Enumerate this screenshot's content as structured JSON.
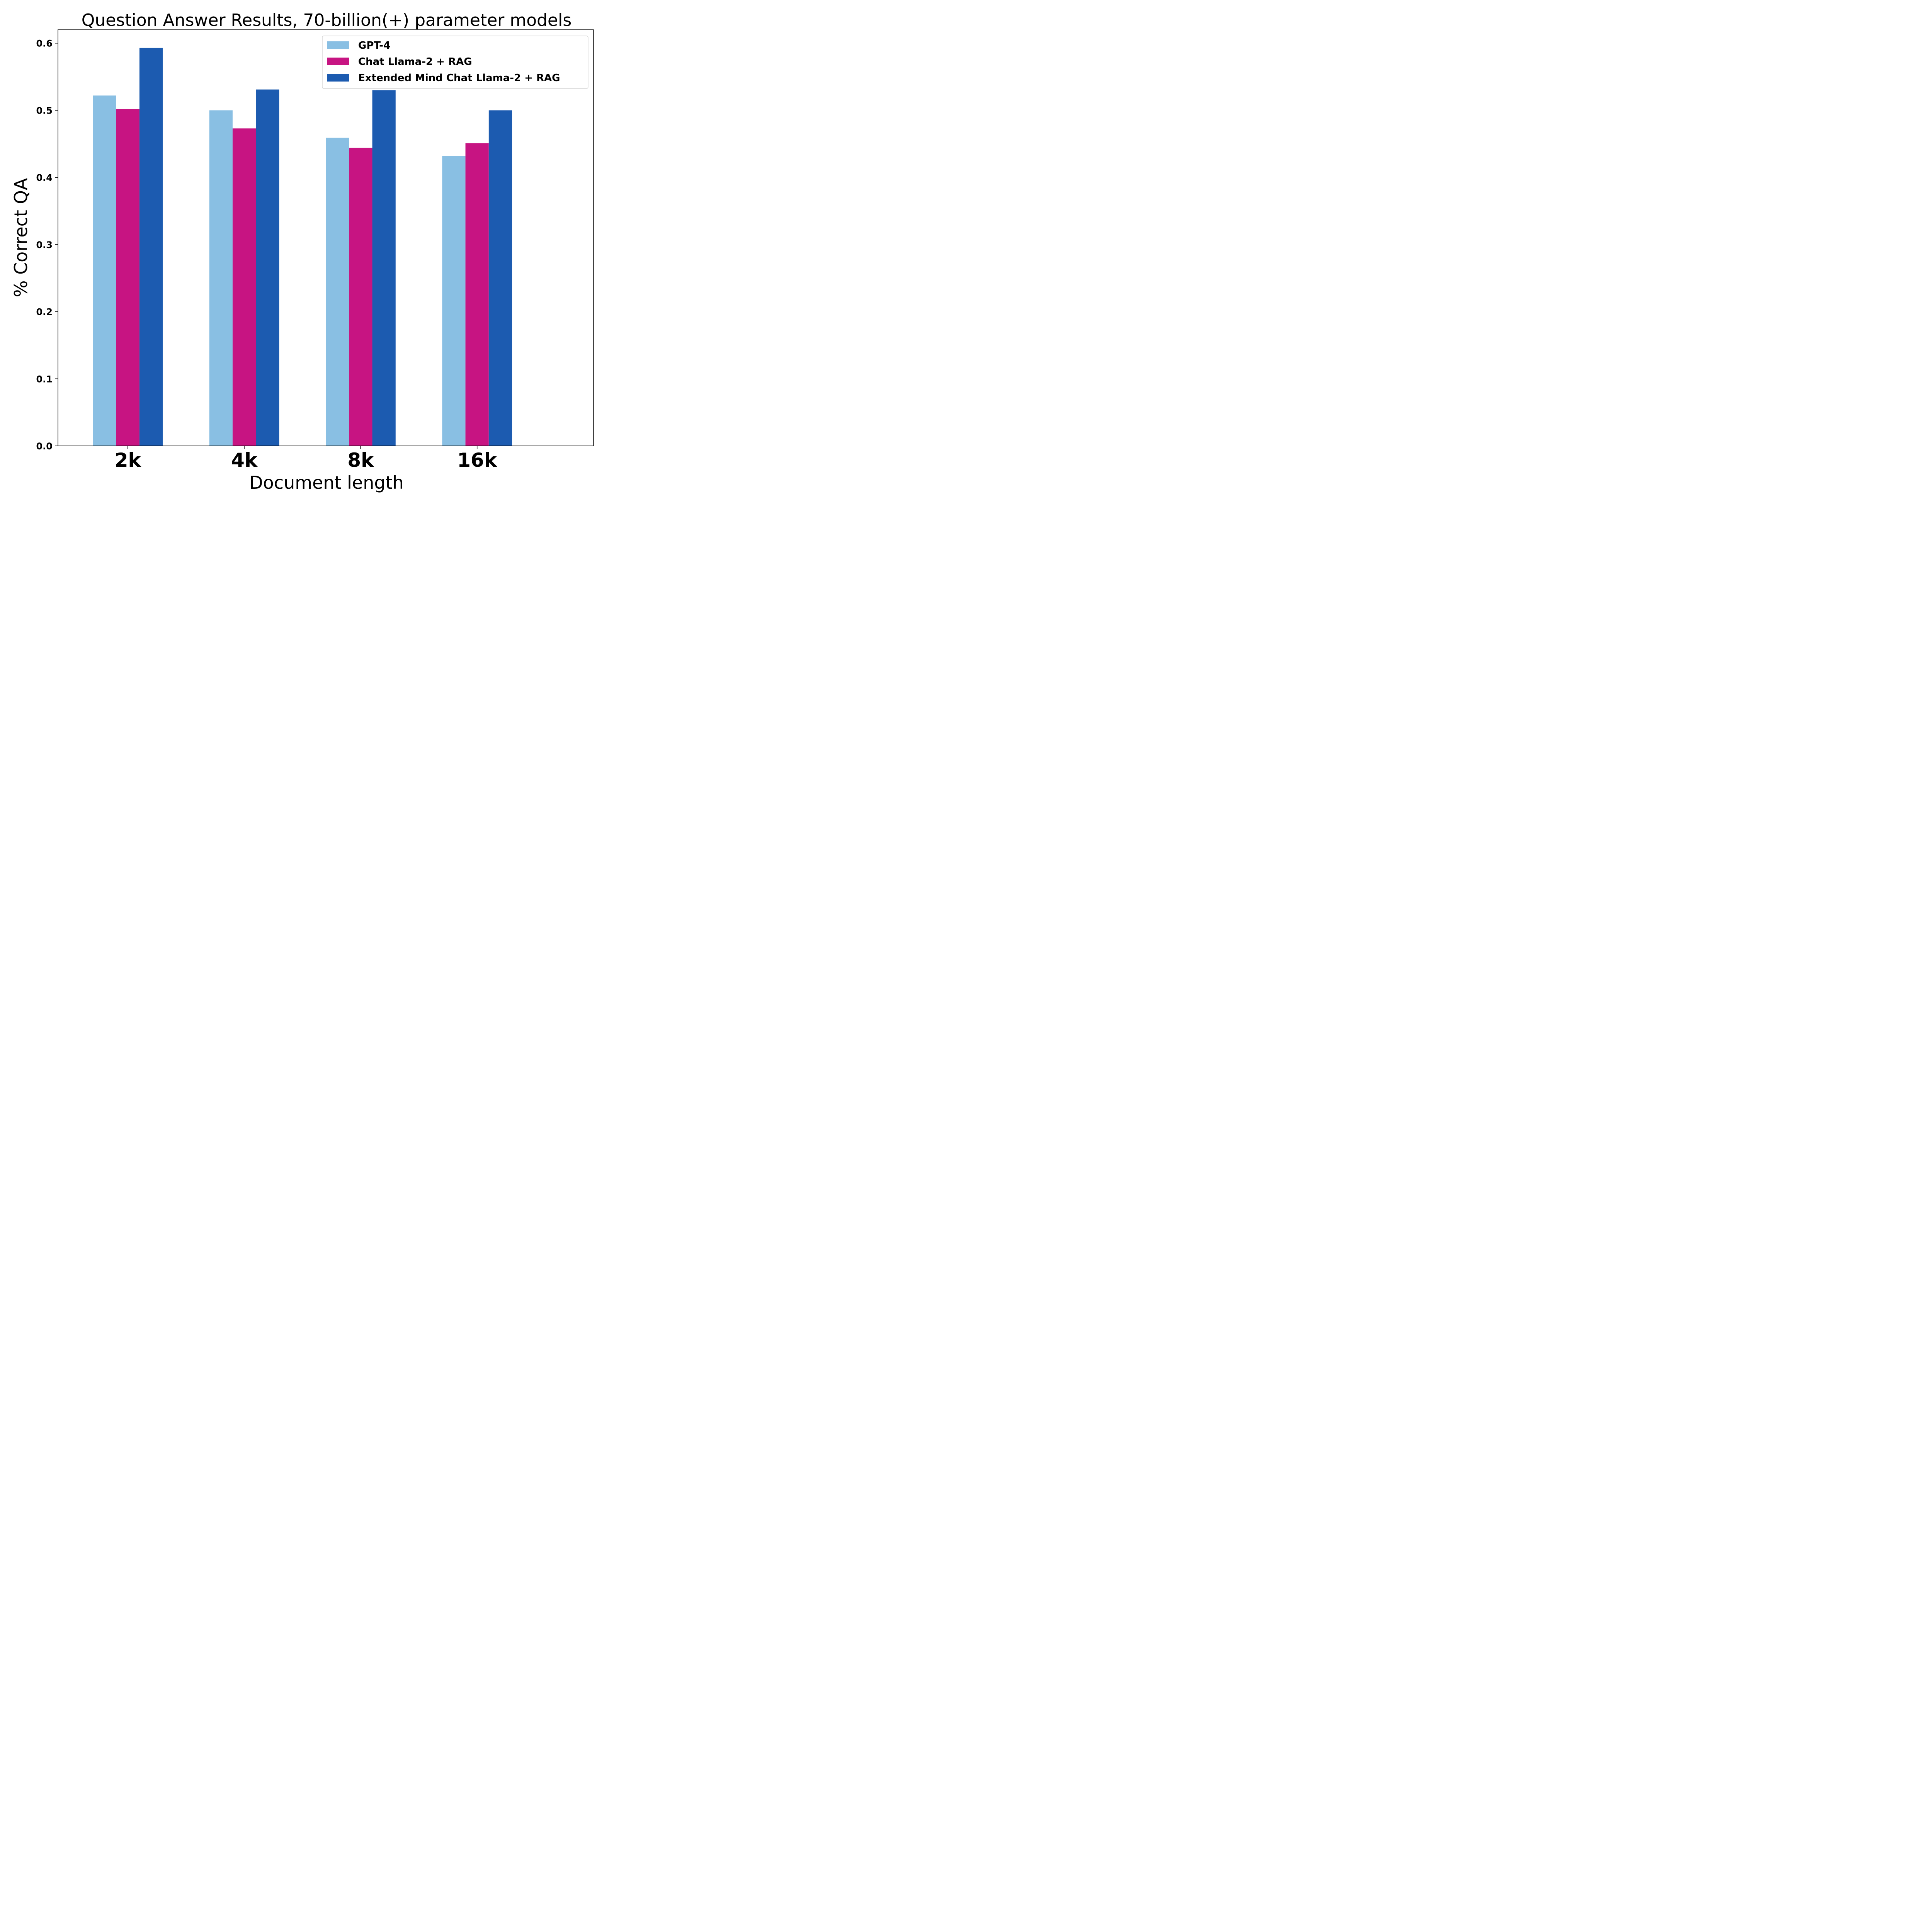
{
  "chart_data": {
    "type": "bar",
    "title": "Question Answer Results, 70-billion(+) parameter models",
    "xlabel": "Document length",
    "ylabel": "% Correct QA",
    "categories": [
      "2k",
      "4k",
      "8k",
      "16k"
    ],
    "series": [
      {
        "name": "GPT-4",
        "color": "#89bfe3",
        "values": [
          0.522,
          0.5,
          0.459,
          0.432
        ]
      },
      {
        "name": "Chat Llama-2 + RAG",
        "color": "#c71482",
        "values": [
          0.502,
          0.473,
          0.444,
          0.451
        ]
      },
      {
        "name": "Extended Mind Chat Llama-2 + RAG",
        "color": "#1c5bb0",
        "values": [
          0.593,
          0.531,
          0.53,
          0.5
        ]
      }
    ],
    "ylim": [
      0,
      0.62
    ],
    "yticks": [
      "0.0",
      "0.1",
      "0.2",
      "0.3",
      "0.4",
      "0.5",
      "0.6"
    ],
    "grid": false,
    "legend_position": "top-right"
  }
}
